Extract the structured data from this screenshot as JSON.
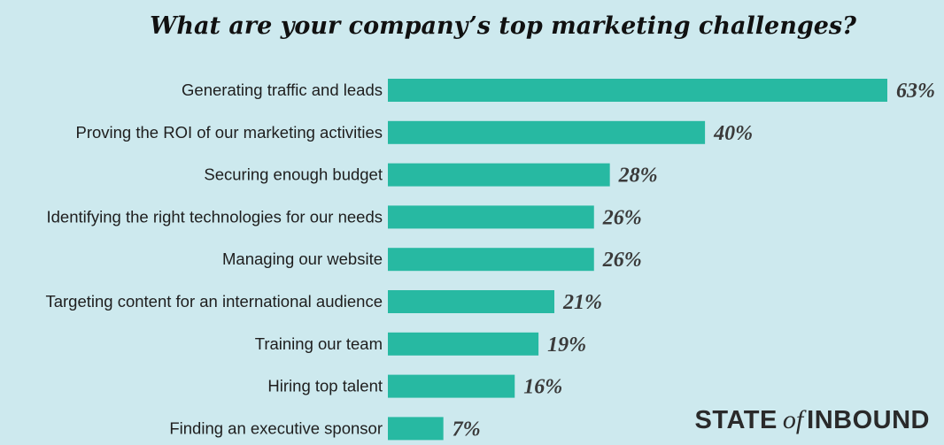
{
  "chart_data": {
    "type": "bar",
    "orientation": "horizontal",
    "title": "What are your company’s top marketing challenges?",
    "xlabel": "",
    "ylabel": "",
    "xlim": [
      0,
      63
    ],
    "grid": false,
    "value_suffix": "%",
    "bar_color": "#27b9a2",
    "categories": [
      "Generating traffic and leads",
      "Proving the ROI of our marketing activities",
      "Securing enough budget",
      "Identifying the right technologies for our needs",
      "Managing our website",
      "Targeting content for an international audience",
      "Training our team",
      "Hiring top talent",
      "Finding an executive sponsor"
    ],
    "values": [
      63,
      40,
      28,
      26,
      26,
      21,
      19,
      16,
      7
    ],
    "value_labels": [
      "63%",
      "40%",
      "28%",
      "26%",
      "26%",
      "21%",
      "19%",
      "16%",
      "7%"
    ]
  },
  "brand": {
    "part1": "STATE",
    "part2": "of",
    "part3": "INBOUND"
  },
  "colors": {
    "background": "#cde9ee",
    "bar": "#27b9a2",
    "title": "#111111"
  }
}
